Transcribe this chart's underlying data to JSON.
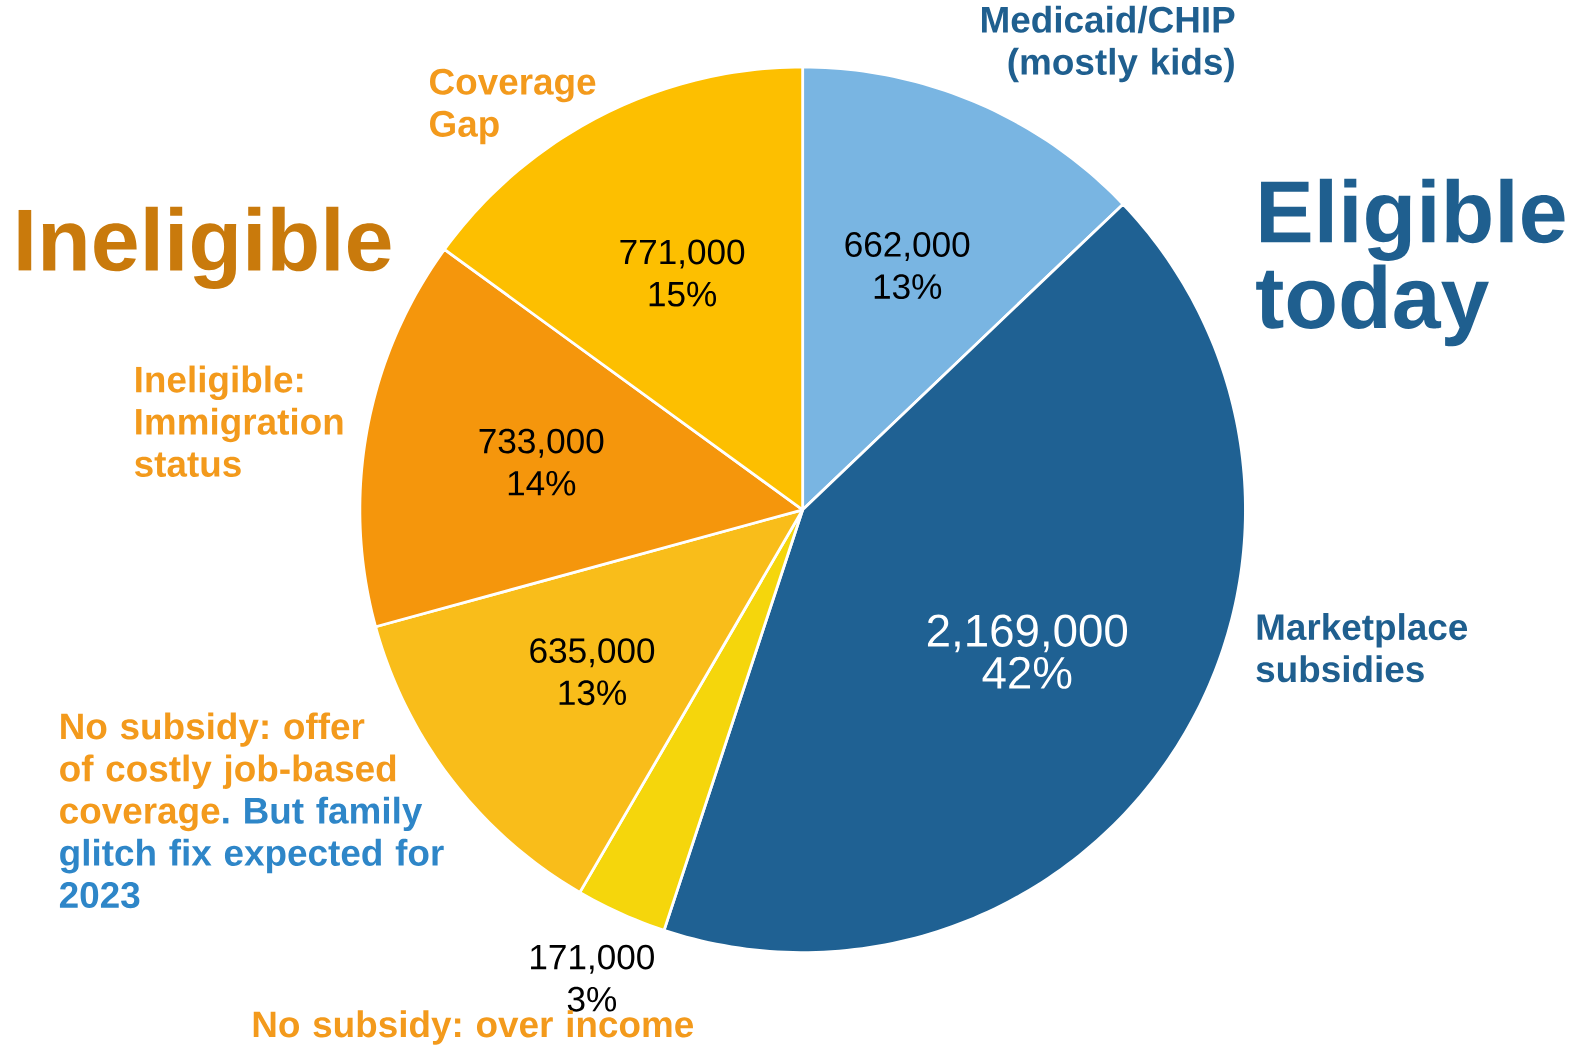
{
  "chart_data": {
    "type": "pie",
    "categories": [
      "Medicaid/CHIP (mostly kids)",
      "Marketplace subsidies",
      "No subsidy: over income",
      "No subsidy: offer of costly job-based coverage",
      "Ineligible: Immigration status",
      "Coverage Gap"
    ],
    "values": [
      662000,
      2169000,
      171000,
      635000,
      733000,
      771000
    ],
    "colors": [
      "#79b5e2",
      "#1f6193",
      "#f5d60c",
      "#f9bd1a",
      "#f5960c",
      "#fdbf00"
    ],
    "value_labels": [
      "662,000 13%",
      "2,169,000 42%",
      "171,000 3%",
      "635,000 13%",
      "733,000 14%",
      "771,000 15%"
    ],
    "annotations": [
      "Eligible today",
      "Ineligible",
      ". But family glitch fix expected for 2023"
    ]
  }
}
